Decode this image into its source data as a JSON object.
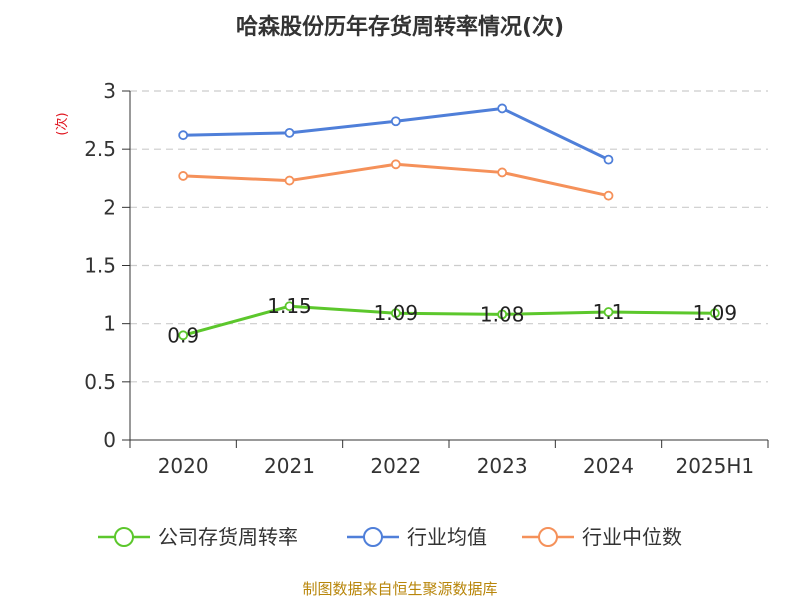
{
  "chart_data": {
    "type": "line",
    "title": "哈森股份历年存货周转率情况(次)",
    "ylabel": "(次)",
    "xlabel": "",
    "categories": [
      "2020",
      "2021",
      "2022",
      "2023",
      "2024",
      "2025H1"
    ],
    "ylim": [
      0,
      3
    ],
    "yticks": [
      "0",
      "0.5",
      "1",
      "1.5",
      "2",
      "2.5",
      "3"
    ],
    "grid": true,
    "legend_position": "bottom",
    "series": [
      {
        "name": "公司存货周转率",
        "color": "#5cc72c",
        "values": [
          0.9,
          1.15,
          1.09,
          1.08,
          1.1,
          1.09
        ],
        "labels": [
          "0.9",
          "1.15",
          "1.09",
          "1.08",
          "1.1",
          "1.09"
        ]
      },
      {
        "name": "行业均值",
        "color": "#4f7fd9",
        "values": [
          2.62,
          2.64,
          2.74,
          2.85,
          2.41,
          null
        ]
      },
      {
        "name": "行业中位数",
        "color": "#f5915a",
        "values": [
          2.27,
          2.23,
          2.37,
          2.3,
          2.1,
          null
        ]
      }
    ]
  },
  "footer": {
    "source": "制图数据来自恒生聚源数据库"
  }
}
